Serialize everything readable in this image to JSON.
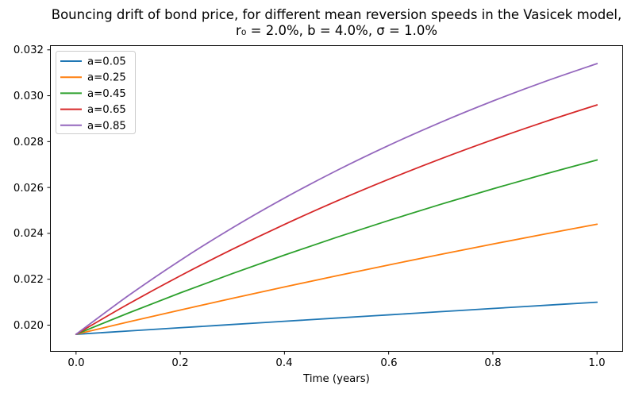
{
  "figure": {
    "title_line1": "Bouncing drift of bond price, for different mean reversion speeds in the Vasicek model,",
    "title_line2": "r₀ = 2.0%, b = 4.0%, σ = 1.0%",
    "background": "#ffffff"
  },
  "chart_data": {
    "type": "line",
    "title": "Bouncing drift of bond price, for different mean reversion speeds in the Vasicek model, r₀ = 2.0%, b = 4.0%, σ = 1.0%",
    "xlabel": "Time (years)",
    "ylabel": "",
    "x": [
      0.0,
      0.1,
      0.2,
      0.3,
      0.4,
      0.5,
      0.6,
      0.7,
      0.8,
      0.9,
      1.0
    ],
    "series": [
      {
        "name": "a=0.05",
        "color": "#1f77b4",
        "values": [
          0.0196,
          0.019743,
          0.019886,
          0.020027,
          0.020168,
          0.020309,
          0.020448,
          0.020587,
          0.020726,
          0.020863,
          0.021
        ]
      },
      {
        "name": "a=0.25",
        "color": "#ff7f0e",
        "values": [
          0.0196,
          0.020136,
          0.020658,
          0.021168,
          0.021665,
          0.02215,
          0.022623,
          0.023084,
          0.023534,
          0.023973,
          0.0244
        ]
      },
      {
        "name": "a=0.45",
        "color": "#2ca02c",
        "values": [
          0.0196,
          0.020523,
          0.021405,
          0.022248,
          0.023055,
          0.023826,
          0.024562,
          0.025267,
          0.02594,
          0.026584,
          0.0272
        ]
      },
      {
        "name": "a=0.65",
        "color": "#d62728",
        "values": [
          0.0196,
          0.020916,
          0.02215,
          0.023306,
          0.02439,
          0.025405,
          0.026356,
          0.027248,
          0.028083,
          0.028866,
          0.0296
        ]
      },
      {
        "name": "a=0.85",
        "color": "#9467bd",
        "values": [
          0.0196,
          0.021279,
          0.022822,
          0.024239,
          0.02554,
          0.026736,
          0.027833,
          0.028842,
          0.029768,
          0.030619,
          0.0314
        ]
      }
    ],
    "xticks": [
      "0.0",
      "0.2",
      "0.4",
      "0.6",
      "0.8",
      "1.0"
    ],
    "yticks": [
      "0.020",
      "0.022",
      "0.024",
      "0.026",
      "0.028",
      "0.030",
      "0.032"
    ],
    "xlim": [
      -0.05,
      1.05
    ],
    "ylim": [
      0.01884,
      0.0322
    ],
    "legend_position": "upper left",
    "grid": false,
    "axis_color": "#000000",
    "line_width": 1.8
  }
}
